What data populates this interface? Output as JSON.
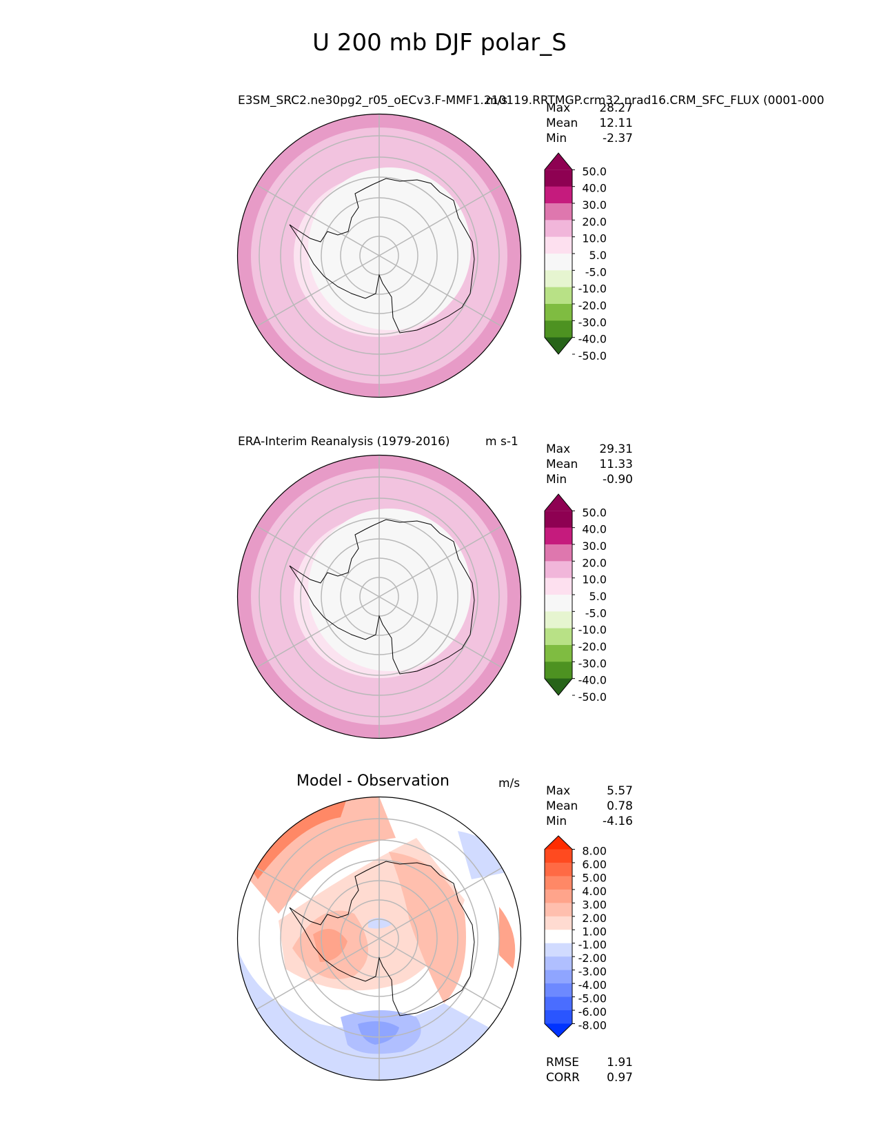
{
  "figure": {
    "title": "U 200 mb DJF polar_S"
  },
  "panels": [
    {
      "id": "model",
      "title_left": "E3SM_SRC2.ne30pg2_r05_oECv3.F-MMF1.210119.RRTMGP.crm32.nrad16.CRM_SFC_FLUX (0001-000",
      "title_right": "m/s",
      "stats": [
        {
          "label": "Max",
          "value": "28.27"
        },
        {
          "label": "Mean",
          "value": "12.11"
        },
        {
          "label": "Min",
          "value": "-2.37"
        }
      ],
      "colorbar": {
        "labels": [
          "50.0",
          "40.0",
          "30.0",
          "20.0",
          "10.0",
          "5.0",
          "-5.0",
          "-10.0",
          "-20.0",
          "-30.0",
          "-40.0",
          "-50.0"
        ],
        "colors": [
          "#276419",
          "#4d9221",
          "#7fbc41",
          "#b8e186",
          "#e6f5d0",
          "#f7f7f7",
          "#fde0ef",
          "#f1b6da",
          "#de77ae",
          "#c51b7d",
          "#8e0152",
          "#8e0152"
        ]
      },
      "rings": [
        "#e79bc7",
        "#f2c3df",
        "#fbe3f0",
        "#f7f7f7"
      ]
    },
    {
      "id": "obs",
      "title_left": "ERA-Interim Reanalysis (1979-2016)",
      "title_right": "m s-1",
      "stats": [
        {
          "label": "Max",
          "value": "29.31"
        },
        {
          "label": "Mean",
          "value": "11.33"
        },
        {
          "label": "Min",
          "value": "-0.90"
        }
      ],
      "colorbar": {
        "labels": [
          "50.0",
          "40.0",
          "30.0",
          "20.0",
          "10.0",
          "5.0",
          "-5.0",
          "-10.0",
          "-20.0",
          "-30.0",
          "-40.0",
          "-50.0"
        ],
        "colors": [
          "#276419",
          "#4d9221",
          "#7fbc41",
          "#b8e186",
          "#e6f5d0",
          "#f7f7f7",
          "#fde0ef",
          "#f1b6da",
          "#de77ae",
          "#c51b7d",
          "#8e0152",
          "#8e0152"
        ]
      },
      "rings": [
        "#e79bc7",
        "#f2c3df",
        "#fbe3f0",
        "#f7f7f7"
      ]
    },
    {
      "id": "diff",
      "title_center": "Model - Observation",
      "title_right": "m/s",
      "stats": [
        {
          "label": "Max",
          "value": "5.57"
        },
        {
          "label": "Mean",
          "value": "0.78"
        },
        {
          "label": "Min",
          "value": "-4.16"
        }
      ],
      "colorbar": {
        "labels": [
          "8.00",
          "6.00",
          "5.00",
          "4.00",
          "3.00",
          "2.00",
          "1.00",
          "-1.00",
          "-2.00",
          "-3.00",
          "-4.00",
          "-5.00",
          "-6.00",
          "-8.00"
        ],
        "colors": [
          "#0033ff",
          "#2a55ff",
          "#4a6dff",
          "#6d89ff",
          "#8fa5ff",
          "#b0bfff",
          "#d1dbff",
          "#ffffff",
          "#ffdbd1",
          "#ffbfae",
          "#ffa48b",
          "#ff8866",
          "#ff6a44",
          "#ff4a1f",
          "#ff2d00"
        ]
      },
      "metrics": [
        {
          "label": "RMSE",
          "value": "1.91"
        },
        {
          "label": "CORR",
          "value": "0.97"
        }
      ]
    }
  ]
}
